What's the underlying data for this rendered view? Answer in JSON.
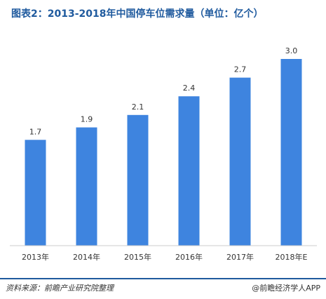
{
  "title": "图表2：2013-2018年中国停车位需求量（单位：亿个）",
  "chart_data": {
    "type": "bar",
    "title": "图表2：2013-2018年中国停车位需求量（单位：亿个）",
    "categories": [
      "2013年",
      "2014年",
      "2015年",
      "2016年",
      "2017年",
      "2018年E"
    ],
    "values": [
      1.7,
      1.9,
      2.1,
      2.4,
      2.7,
      3.0
    ],
    "ylim": [
      0,
      3.0
    ],
    "grid": false,
    "bar_color": "#3e84df"
  },
  "footer": {
    "source": "资料来源：前瞻产业研究院整理",
    "brand": "@前瞻经济学人APP"
  },
  "colors": {
    "accent": "#1f5a9e",
    "bar": "#3e84df"
  }
}
